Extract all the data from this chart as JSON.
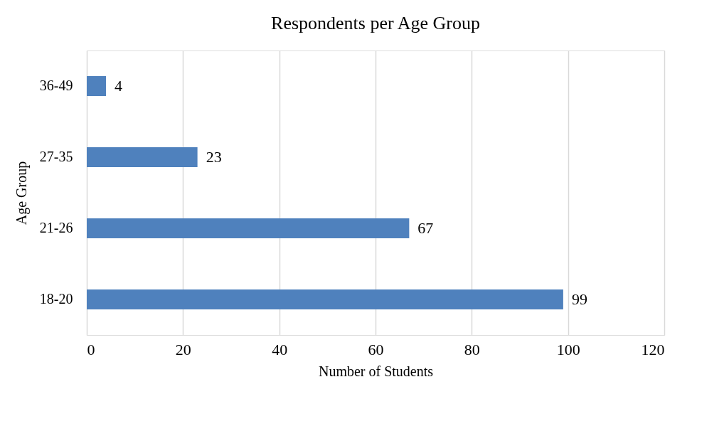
{
  "chart_data": {
    "type": "bar",
    "orientation": "horizontal",
    "title": "Respondents per Age Group",
    "xlabel": "Number of Students",
    "ylabel": "Age Group",
    "categories": [
      "36-49",
      "27-35",
      "21-26",
      "18-20"
    ],
    "values": [
      4,
      23,
      67,
      99
    ],
    "color": "#4f81bd",
    "xlim": [
      0,
      120
    ],
    "xticks": [
      0,
      20,
      40,
      60,
      80,
      100,
      120
    ],
    "grid": "x",
    "data_labels": true
  }
}
